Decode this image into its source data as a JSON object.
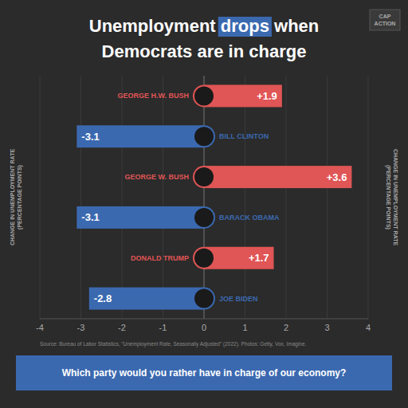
{
  "chart_data": {
    "type": "bar",
    "orientation": "horizontal",
    "title": [
      "Unemployment ",
      "drops",
      " when"
    ],
    "subtitle": "Democrats are in charge",
    "ylabel": "CHANGE IN UNEMPLOYMENT RATE\n(PERCENTAGE POINTS)",
    "categories": [
      "GEORGE H.W. BUSH",
      "BILL CLINTON",
      "GEORGE W. BUSH",
      "BARACK OBAMA",
      "DONALD TRUMP",
      "JOE BIDEN"
    ],
    "values": [
      1.9,
      -3.1,
      3.6,
      -3.1,
      1.7,
      -2.8
    ],
    "value_labels": [
      "+1.9",
      "-3.1",
      "+3.6",
      "-3.1",
      "+1.7",
      "-2.8"
    ],
    "data_labels": true,
    "colors": [
      "#E05555",
      "#3B69B0",
      "#E05555",
      "#3B69B0",
      "#E05555",
      "#3B69B0"
    ],
    "xlim": [
      -4,
      4
    ],
    "xticks": [
      -4,
      -3,
      -2,
      -1,
      0,
      1,
      2,
      3,
      4
    ],
    "grid": true,
    "annotations": [
      "CAP\nACTION",
      "Source: Bureau of Labor Statistics, \"Unemployment Rate, Seasonally Adjusted\" (2022). Photos: Getty, Vox, Imagine.",
      "Which party would you rather have in charge of our economy?"
    ]
  }
}
